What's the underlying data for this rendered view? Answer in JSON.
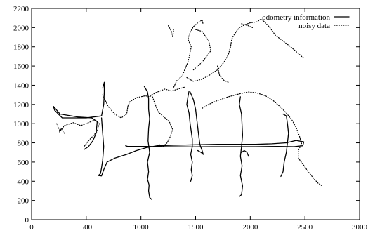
{
  "chart_data": {
    "type": "line",
    "title": "",
    "xlabel": "",
    "ylabel": "",
    "xlim": [
      0,
      3000
    ],
    "ylim": [
      0,
      2200
    ],
    "xticks": [
      0,
      500,
      1000,
      1500,
      2000,
      2500,
      3000
    ],
    "yticks": [
      0,
      200,
      400,
      600,
      800,
      1000,
      1200,
      1400,
      1600,
      1800,
      2000,
      2200
    ],
    "xtick_labels": [
      "0",
      "500",
      "1000",
      "1500",
      "2000",
      "2500",
      "3000"
    ],
    "ytick_labels": [
      "0",
      "200",
      "400",
      "600",
      "800",
      "1000",
      "1200",
      "1400",
      "1600",
      "1800",
      "2000",
      "2200"
    ],
    "grid": false,
    "legend_position": "top-right",
    "series": [
      {
        "name": "odometry information",
        "style": "solid",
        "color": "#000000",
        "segments": [
          [
            [
              650,
              1370
            ],
            [
              665,
              1430
            ],
            [
              665,
              1330
            ],
            [
              660,
              1200
            ],
            [
              640,
              1080
            ],
            [
              500,
              1060
            ],
            [
              280,
              1060
            ],
            [
              210,
              1140
            ],
            [
              200,
              1180
            ],
            [
              260,
              1100
            ],
            [
              420,
              1070
            ],
            [
              550,
              1060
            ],
            [
              600,
              1020
            ],
            [
              590,
              900
            ],
            [
              560,
              820
            ],
            [
              520,
              760
            ],
            [
              480,
              730
            ]
          ],
          [
            [
              640,
              1060
            ],
            [
              650,
              900
            ],
            [
              660,
              760
            ],
            [
              650,
              620
            ],
            [
              640,
              540
            ],
            [
              630,
              480
            ],
            [
              610,
              460
            ],
            [
              640,
              455
            ],
            [
              660,
              520
            ],
            [
              690,
              600
            ],
            [
              760,
              640
            ],
            [
              870,
              680
            ],
            [
              960,
              720
            ],
            [
              1050,
              750
            ],
            [
              1150,
              770
            ],
            [
              1300,
              775
            ],
            [
              1500,
              780
            ],
            [
              1700,
              785
            ],
            [
              1900,
              785
            ],
            [
              2050,
              785
            ],
            [
              2200,
              790
            ],
            [
              2330,
              800
            ],
            [
              2420,
              825
            ],
            [
              2490,
              810
            ],
            [
              2480,
              770
            ],
            [
              2400,
              760
            ],
            [
              2250,
              762
            ],
            [
              2050,
              760
            ],
            [
              1850,
              760
            ],
            [
              1650,
              760
            ],
            [
              1450,
              758
            ],
            [
              1250,
              760
            ],
            [
              1050,
              762
            ],
            [
              880,
              762
            ],
            [
              860,
              770
            ]
          ],
          [
            [
              1030,
              1390
            ],
            [
              1060,
              1330
            ],
            [
              1070,
              1260
            ],
            [
              1070,
              1150
            ],
            [
              1080,
              1050
            ],
            [
              1070,
              950
            ],
            [
              1065,
              820
            ],
            [
              1080,
              700
            ],
            [
              1060,
              600
            ],
            [
              1070,
              500
            ],
            [
              1060,
              420
            ],
            [
              1075,
              360
            ],
            [
              1070,
              300
            ],
            [
              1080,
              230
            ],
            [
              1100,
              210
            ]
          ],
          [
            [
              1440,
              1340
            ],
            [
              1430,
              1280
            ],
            [
              1420,
              1200
            ],
            [
              1440,
              1110
            ],
            [
              1450,
              1000
            ],
            [
              1460,
              920
            ],
            [
              1470,
              840
            ],
            [
              1470,
              760
            ],
            [
              1455,
              680
            ],
            [
              1470,
              600
            ],
            [
              1460,
              520
            ],
            [
              1470,
              460
            ],
            [
              1455,
              400
            ]
          ],
          [
            [
              1450,
              1330
            ],
            [
              1480,
              1250
            ],
            [
              1500,
              1150
            ],
            [
              1510,
              1050
            ],
            [
              1520,
              960
            ],
            [
              1530,
              860
            ],
            [
              1540,
              780
            ],
            [
              1560,
              720
            ],
            [
              1570,
              680
            ],
            [
              1550,
              700
            ],
            [
              1520,
              720
            ]
          ],
          [
            [
              1910,
              1280
            ],
            [
              1900,
              1200
            ],
            [
              1920,
              1100
            ],
            [
              1925,
              980
            ],
            [
              1930,
              880
            ],
            [
              1920,
              760
            ],
            [
              1910,
              660
            ],
            [
              1925,
              560
            ],
            [
              1910,
              460
            ],
            [
              1930,
              350
            ],
            [
              1920,
              260
            ],
            [
              1900,
              240
            ]
          ],
          [
            [
              1920,
              700
            ],
            [
              1945,
              720
            ],
            [
              1970,
              700
            ],
            [
              1985,
              660
            ]
          ],
          [
            [
              2300,
              1100
            ],
            [
              2330,
              1080
            ],
            [
              2340,
              1000
            ],
            [
              2350,
              900
            ],
            [
              2340,
              800
            ],
            [
              2330,
              700
            ],
            [
              2310,
              600
            ],
            [
              2300,
              500
            ],
            [
              2280,
              450
            ]
          ]
        ]
      },
      {
        "name": "noisy data",
        "style": "dotted",
        "color": "#000000",
        "segments": [
          [
            [
              230,
              1000
            ],
            [
              260,
              920
            ],
            [
              300,
              980
            ],
            [
              380,
              1010
            ],
            [
              450,
              980
            ],
            [
              500,
              1000
            ],
            [
              580,
              1040
            ],
            [
              620,
              1000
            ],
            [
              600,
              920
            ],
            [
              560,
              870
            ],
            [
              520,
              820
            ],
            [
              480,
              760
            ]
          ],
          [
            [
              300,
              900
            ],
            [
              270,
              950
            ],
            [
              250,
              900
            ]
          ],
          [
            [
              650,
              1300
            ],
            [
              700,
              1180
            ],
            [
              760,
              1100
            ],
            [
              820,
              1060
            ],
            [
              870,
              1100
            ],
            [
              880,
              1180
            ],
            [
              900,
              1230
            ],
            [
              960,
              1270
            ],
            [
              1040,
              1290
            ],
            [
              1080,
              1280
            ],
            [
              1130,
              1320
            ],
            [
              1220,
              1360
            ],
            [
              1280,
              1340
            ],
            [
              1340,
              1360
            ],
            [
              1400,
              1380
            ]
          ],
          [
            [
              1100,
              1300
            ],
            [
              1130,
              1200
            ],
            [
              1160,
              1120
            ],
            [
              1200,
              1080
            ],
            [
              1260,
              1020
            ],
            [
              1290,
              940
            ],
            [
              1270,
              870
            ],
            [
              1240,
              800
            ],
            [
              1200,
              760
            ],
            [
              1170,
              780
            ]
          ],
          [
            [
              1300,
              1380
            ],
            [
              1330,
              1450
            ],
            [
              1380,
              1500
            ],
            [
              1400,
              1560
            ],
            [
              1430,
              1640
            ],
            [
              1450,
              1740
            ],
            [
              1460,
              1800
            ],
            [
              1430,
              1880
            ],
            [
              1450,
              1950
            ],
            [
              1480,
              2010
            ],
            [
              1520,
              2050
            ],
            [
              1560,
              2080
            ],
            [
              1570,
              2030
            ]
          ],
          [
            [
              1250,
              2020
            ],
            [
              1280,
              1960
            ],
            [
              1290,
              1900
            ],
            [
              1300,
              1980
            ]
          ],
          [
            [
              1500,
              1980
            ],
            [
              1560,
              1960
            ],
            [
              1620,
              1860
            ],
            [
              1640,
              1760
            ],
            [
              1600,
              1700
            ],
            [
              1560,
              1640
            ],
            [
              1520,
              1600
            ],
            [
              1480,
              1560
            ]
          ],
          [
            [
              1420,
              1480
            ],
            [
              1480,
              1440
            ],
            [
              1550,
              1460
            ],
            [
              1620,
              1500
            ],
            [
              1700,
              1560
            ],
            [
              1760,
              1640
            ],
            [
              1800,
              1720
            ],
            [
              1820,
              1800
            ],
            [
              1830,
              1880
            ],
            [
              1860,
              1940
            ],
            [
              1900,
              2000
            ],
            [
              1950,
              2030
            ],
            [
              2000,
              2050
            ],
            [
              2060,
              2060
            ],
            [
              2100,
              2090
            ],
            [
              2130,
              2060
            ],
            [
              2180,
              2000
            ],
            [
              2230,
              1920
            ],
            [
              2300,
              1860
            ],
            [
              2370,
              1800
            ],
            [
              2430,
              1740
            ],
            [
              2480,
              1690
            ],
            [
              2500,
              1680
            ]
          ],
          [
            [
              1560,
              1160
            ],
            [
              1620,
              1200
            ],
            [
              1700,
              1240
            ],
            [
              1800,
              1280
            ],
            [
              1900,
              1310
            ],
            [
              1980,
              1330
            ],
            [
              2060,
              1320
            ],
            [
              2140,
              1290
            ],
            [
              2210,
              1240
            ],
            [
              2270,
              1180
            ],
            [
              2330,
              1110
            ],
            [
              2380,
              1040
            ],
            [
              2420,
              960
            ],
            [
              2450,
              870
            ],
            [
              2470,
              790
            ],
            [
              2440,
              720
            ],
            [
              2440,
              640
            ],
            [
              2480,
              580
            ],
            [
              2530,
              500
            ],
            [
              2580,
              430
            ],
            [
              2620,
              380
            ],
            [
              2660,
              350
            ]
          ],
          [
            [
              1700,
              1600
            ],
            [
              1720,
              1500
            ],
            [
              1760,
              1450
            ],
            [
              1800,
              1430
            ]
          ],
          [
            [
              1920,
              2040
            ],
            [
              1980,
              2020
            ],
            [
              2020,
              2000
            ]
          ]
        ]
      }
    ]
  }
}
